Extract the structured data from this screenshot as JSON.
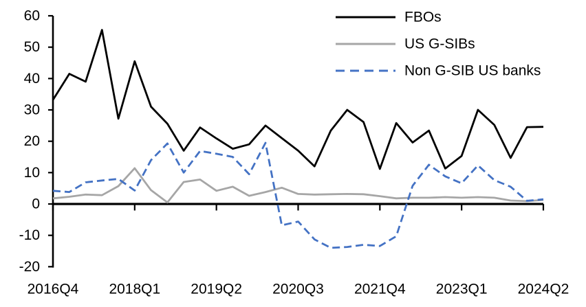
{
  "chart_data": {
    "type": "line",
    "title": "",
    "xlabel": "",
    "ylabel": "",
    "grid": false,
    "legend_position": "top-right",
    "y_axis": {
      "min": -20,
      "max": 60,
      "step": 10
    },
    "x_tick_labels": [
      "2016Q4",
      "2018Q1",
      "2019Q2",
      "2020Q3",
      "2021Q4",
      "2023Q1",
      "2024Q2"
    ],
    "categories": [
      "2016Q4",
      "2017Q1",
      "2017Q2",
      "2017Q3",
      "2017Q4",
      "2018Q1",
      "2018Q2",
      "2018Q3",
      "2018Q4",
      "2019Q1",
      "2019Q2",
      "2019Q3",
      "2019Q4",
      "2020Q1",
      "2020Q2",
      "2020Q3",
      "2020Q4",
      "2021Q1",
      "2021Q2",
      "2021Q3",
      "2021Q4",
      "2022Q1",
      "2022Q2",
      "2022Q3",
      "2022Q4",
      "2023Q1",
      "2023Q2",
      "2023Q3",
      "2023Q4",
      "2024Q1",
      "2024Q2"
    ],
    "series": [
      {
        "name": "FBOs",
        "color": "#000000",
        "style": "solid",
        "values": [
          33.2,
          41.5,
          39.0,
          55.5,
          27.2,
          45.5,
          31.0,
          25.6,
          17.0,
          24.4,
          20.9,
          17.6,
          19.0,
          25.0,
          21.0,
          17.0,
          12.0,
          23.4,
          30.0,
          26.1,
          11.2,
          25.8,
          19.6,
          23.4,
          11.3,
          15.3,
          30.0,
          25.2,
          14.7,
          24.5,
          24.6
        ]
      },
      {
        "name": "US G-SIBs",
        "color": "#a6a6a6",
        "style": "solid",
        "values": [
          1.8,
          2.3,
          3.0,
          2.8,
          5.7,
          11.4,
          4.4,
          0.5,
          7.0,
          7.8,
          4.2,
          5.5,
          2.6,
          3.8,
          5.2,
          3.2,
          3.0,
          3.1,
          3.2,
          3.1,
          2.5,
          1.8,
          2.0,
          2.0,
          2.2,
          2.0,
          2.2,
          2.0,
          1.1,
          0.9,
          1.3
        ]
      },
      {
        "name": "Non G-SIB US banks",
        "color": "#4472c4",
        "style": "dashed",
        "values": [
          4.2,
          3.8,
          6.9,
          7.5,
          8.0,
          4.3,
          14.0,
          19.3,
          10.0,
          16.9,
          16.0,
          15.0,
          9.5,
          19.5,
          -6.8,
          -5.6,
          -11.3,
          -14.0,
          -13.7,
          -13.0,
          -13.4,
          -10.3,
          5.8,
          12.5,
          8.8,
          6.6,
          12.3,
          7.6,
          5.5,
          1.0,
          1.5
        ]
      }
    ]
  }
}
